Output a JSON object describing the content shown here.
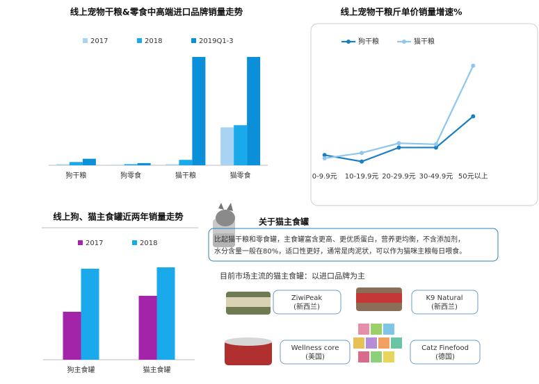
{
  "chart_data": [
    {
      "type": "bar",
      "title": "线上宠物干粮&零食中高端进口品牌销量走势",
      "categories": [
        "狗干粮",
        "狗零食",
        "猫干粮",
        "猫零食"
      ],
      "series": [
        {
          "name": "2017",
          "color": "#a9d3f3",
          "values": [
            1,
            0.5,
            1,
            35
          ]
        },
        {
          "name": "2018",
          "color": "#1aa9ea",
          "values": [
            3,
            1,
            5,
            37
          ]
        },
        {
          "name": "2019Q1-3",
          "color": "#0b8fd8",
          "values": [
            6,
            2,
            100,
            100
          ]
        }
      ],
      "ylim": [
        0,
        100
      ]
    },
    {
      "type": "line",
      "title": "线上宠物干粮斤单价销量增速%",
      "categories": [
        "0-9.9元",
        "10-19.9元",
        "20-29.9元",
        "30-49.9元",
        "50元以上"
      ],
      "series": [
        {
          "name": "狗干粮",
          "color": "#1a7fc1",
          "values": [
            14,
            8,
            21,
            21,
            50
          ]
        },
        {
          "name": "猫干粮",
          "color": "#8fc6ef",
          "values": [
            11,
            16,
            25,
            24,
            97
          ]
        }
      ],
      "ylim": [
        0,
        100
      ]
    },
    {
      "type": "bar",
      "title": "线上狗、猫主食罐近两年销量走势",
      "categories": [
        "狗主食罐",
        "猫主食罐"
      ],
      "series": [
        {
          "name": "2017",
          "color": "#a323a9",
          "values": [
            69,
            92
          ]
        },
        {
          "name": "2018",
          "color": "#1aa9ea",
          "values": [
            131,
            133
          ]
        }
      ],
      "ylim": [
        0,
        150
      ]
    }
  ],
  "about": {
    "title": "关于猫主食罐",
    "description": [
      "比起猫干粮和零食罐，主食罐富含更高、更优质蛋白，营养更均衡，不含添加剂，",
      "水分含量一般在80%，适口性更好，通常是肉泥状，可以作为猫咪主粮每日喂食。"
    ],
    "subtitle": "目前市场主流的猫主食罐：以进口品牌为主",
    "brands": [
      {
        "name": "ZiwiPeak",
        "origin": "(新西兰)"
      },
      {
        "name": "K9 Natural",
        "origin": "(新西兰)"
      },
      {
        "name": "Wellness core",
        "origin": "(美国)"
      },
      {
        "name": "Catz Finefood",
        "origin": "(德国)"
      }
    ]
  }
}
